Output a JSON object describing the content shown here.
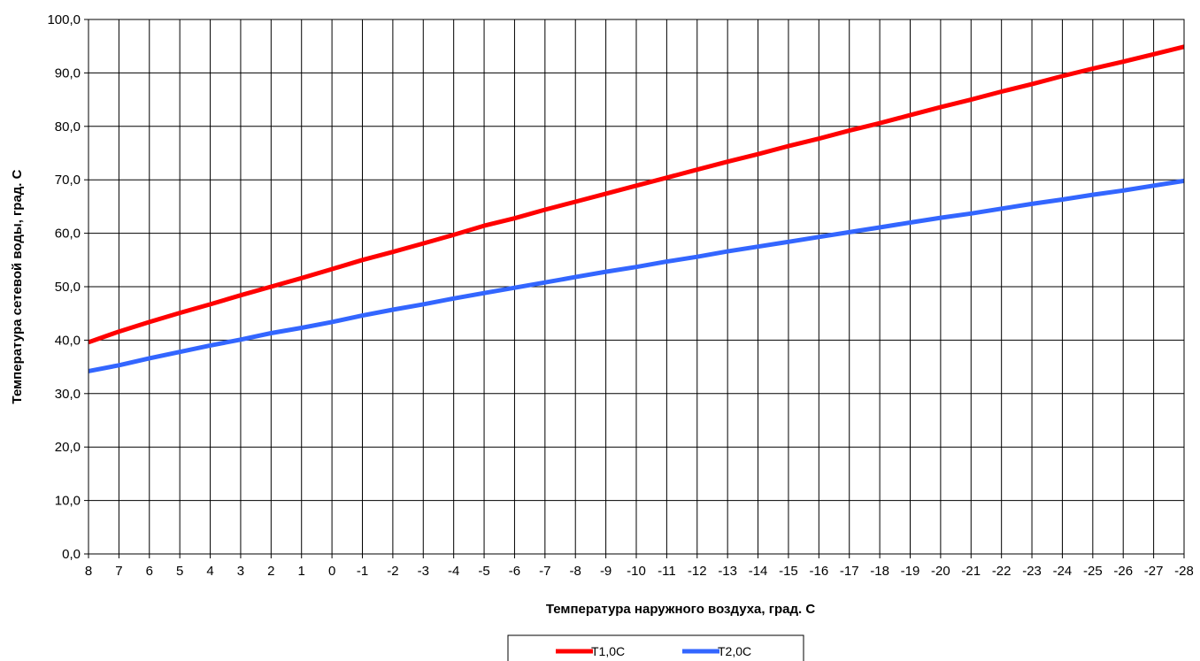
{
  "chart_data": {
    "type": "line",
    "xlabel": "Температура наружного воздуха, град. С",
    "ylabel": "Температура сетевой воды, град. С",
    "x": [
      8,
      7,
      6,
      5,
      4,
      3,
      2,
      1,
      0,
      -1,
      -2,
      -3,
      -4,
      -5,
      -6,
      -7,
      -8,
      -9,
      -10,
      -11,
      -12,
      -13,
      -14,
      -15,
      -16,
      -17,
      -18,
      -19,
      -20,
      -21,
      -22,
      -23,
      -24,
      -25,
      -26,
      -27,
      -28
    ],
    "x_tick_labels": [
      "8",
      "7",
      "6",
      "5",
      "4",
      "3",
      "2",
      "1",
      "0",
      "-1",
      "-2",
      "-3",
      "-4",
      "-5",
      "-6",
      "-7",
      "-8",
      "-9",
      "-10",
      "-11",
      "-12",
      "-13",
      "-14",
      "-15",
      "-16",
      "-17",
      "-18",
      "-19",
      "-20",
      "-21",
      "-22",
      "-23",
      "-24",
      "-25",
      "-26",
      "-27",
      "-28"
    ],
    "ylim": [
      0,
      100
    ],
    "y_ticks": [
      0,
      10,
      20,
      30,
      40,
      50,
      60,
      70,
      80,
      90,
      100
    ],
    "y_tick_labels": [
      "0,0",
      "10,0",
      "20,0",
      "30,0",
      "40,0",
      "50,0",
      "60,0",
      "70,0",
      "80,0",
      "90,0",
      "100,0"
    ],
    "grid": true,
    "legend_position": "bottom",
    "series": [
      {
        "name": "T1,0C",
        "color": "#ff0000",
        "values": [
          39.6,
          41.6,
          43.4,
          45.1,
          46.7,
          48.4,
          50.0,
          51.6,
          53.3,
          55.0,
          56.5,
          58.1,
          59.7,
          61.4,
          62.8,
          64.4,
          65.9,
          67.4,
          68.9,
          70.4,
          71.9,
          73.4,
          74.8,
          76.3,
          77.7,
          79.2,
          80.6,
          82.1,
          83.6,
          85.0,
          86.5,
          87.9,
          89.4,
          90.8,
          92.1,
          93.5,
          94.9
        ]
      },
      {
        "name": "T2,0C",
        "color": "#3366ff",
        "values": [
          34.2,
          35.3,
          36.6,
          37.8,
          39.0,
          40.1,
          41.3,
          42.3,
          43.4,
          44.6,
          45.7,
          46.7,
          47.8,
          48.8,
          49.8,
          50.8,
          51.8,
          52.8,
          53.7,
          54.7,
          55.6,
          56.6,
          57.5,
          58.4,
          59.3,
          60.2,
          61.1,
          62.0,
          62.9,
          63.7,
          64.6,
          65.5,
          66.3,
          67.2,
          68.0,
          68.9,
          69.8
        ]
      }
    ]
  }
}
